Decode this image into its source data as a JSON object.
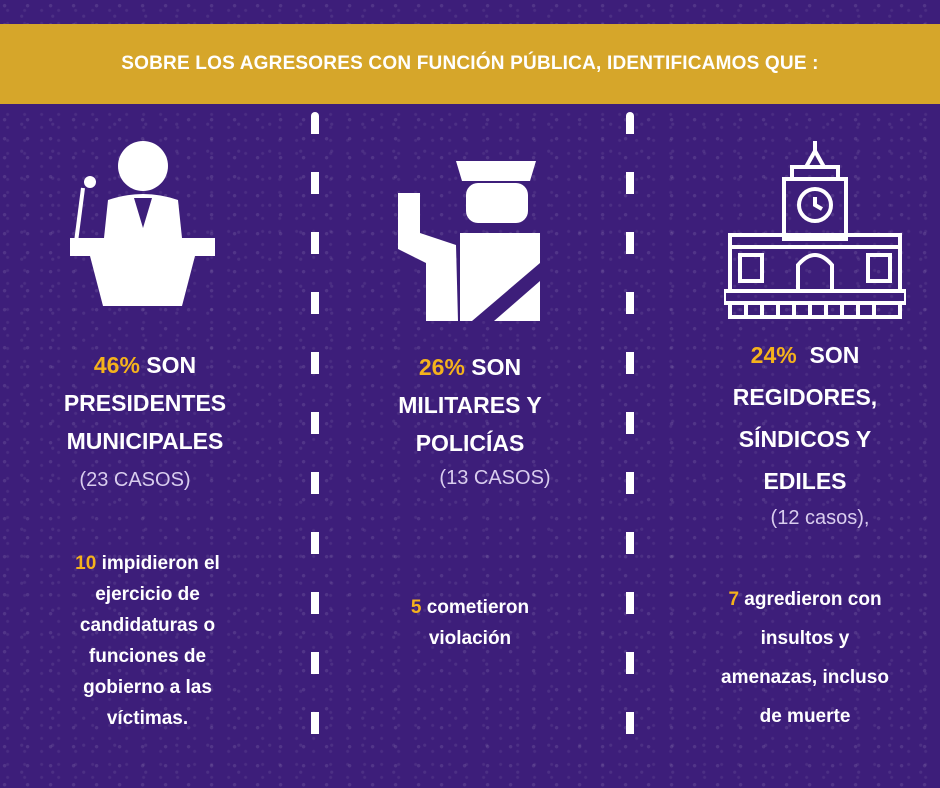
{
  "banner": {
    "title": "SOBRE LOS AGRESORES CON FUNCIÓN PÚBLICA, IDENTIFICAMOS QUE :"
  },
  "colors": {
    "background": "#3d1e7a",
    "banner": "#d6a62a",
    "accent": "#f5b21c",
    "text": "#ffffff"
  },
  "columns": [
    {
      "icon": "podium-speaker-icon",
      "percent": "46%",
      "stat_line1": " SON",
      "stat_line2": "PRESIDENTES",
      "stat_line3": "MUNICIPALES",
      "cases": "(23 CASOS)",
      "detail_number": "10",
      "detail_line1": " impidieron el",
      "detail_line2": "ejercicio de",
      "detail_line3": "candidaturas o",
      "detail_line4": "funciones de",
      "detail_line5": "gobierno a las",
      "detail_line6": "víctimas."
    },
    {
      "icon": "police-officer-icon",
      "percent": "26%",
      "stat_line1": " SON",
      "stat_line2": "MILITARES Y",
      "stat_line3": "POLICÍAS",
      "cases": "(13 CASOS)",
      "detail_number": "5",
      "detail_line1": " cometieron",
      "detail_line2": "violación"
    },
    {
      "icon": "town-hall-icon",
      "percent": "24%",
      "stat_line1": "  SON",
      "stat_line2": "REGIDORES,",
      "stat_line3": "SÍNDICOS Y",
      "stat_line4": "EDILES",
      "cases": "(12 casos),",
      "detail_number": "7",
      "detail_line1": " agredieron con",
      "detail_line2": "insultos y",
      "detail_line3": "amenazas, incluso",
      "detail_line4": "de muerte"
    }
  ]
}
